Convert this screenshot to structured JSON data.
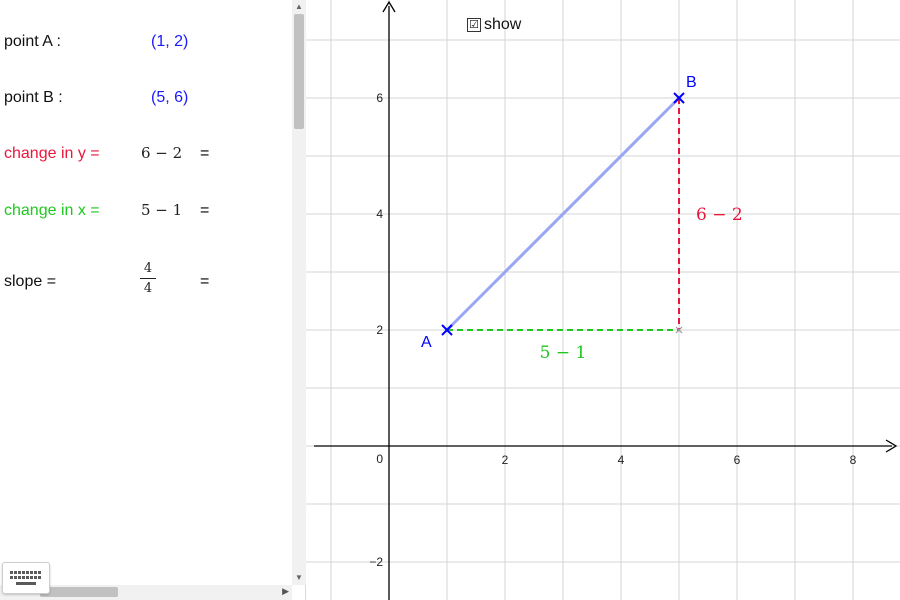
{
  "algebra": {
    "point_a": {
      "label": "point A :",
      "value": "(1, 2)"
    },
    "point_b": {
      "label": "point B :",
      "value": "(5, 6)"
    },
    "change_y": {
      "label": "change in y =",
      "expr": "6 − 2",
      "eq": "="
    },
    "change_x": {
      "label": "change in x =",
      "expr": "5 − 1",
      "eq": "="
    },
    "slope": {
      "label": "slope =",
      "numerator": "4",
      "denominator": "4",
      "eq": "="
    }
  },
  "graphics": {
    "show_checkbox": {
      "label": "show",
      "checked": true,
      "mark": "☑"
    },
    "axis": {
      "origin_label": "0",
      "x_ticks": [
        "2",
        "4",
        "6",
        "8"
      ],
      "y_ticks": [
        "6",
        "4",
        "2",
        "−2"
      ]
    },
    "points": [
      {
        "name": "A",
        "x": 1,
        "y": 2
      },
      {
        "name": "B",
        "x": 5,
        "y": 6
      }
    ],
    "corner": {
      "x": 5,
      "y": 2
    },
    "rise_label": "6 − 2",
    "run_label": "5 − 1"
  },
  "colors": {
    "point": "#0000ff",
    "segment": "#9aa5f5",
    "rise": "#e8173c",
    "run": "#1ec81e",
    "grid": "#d4d4d4",
    "axis": "#000000"
  },
  "icons": {
    "keyboard": "keyboard-icon"
  }
}
